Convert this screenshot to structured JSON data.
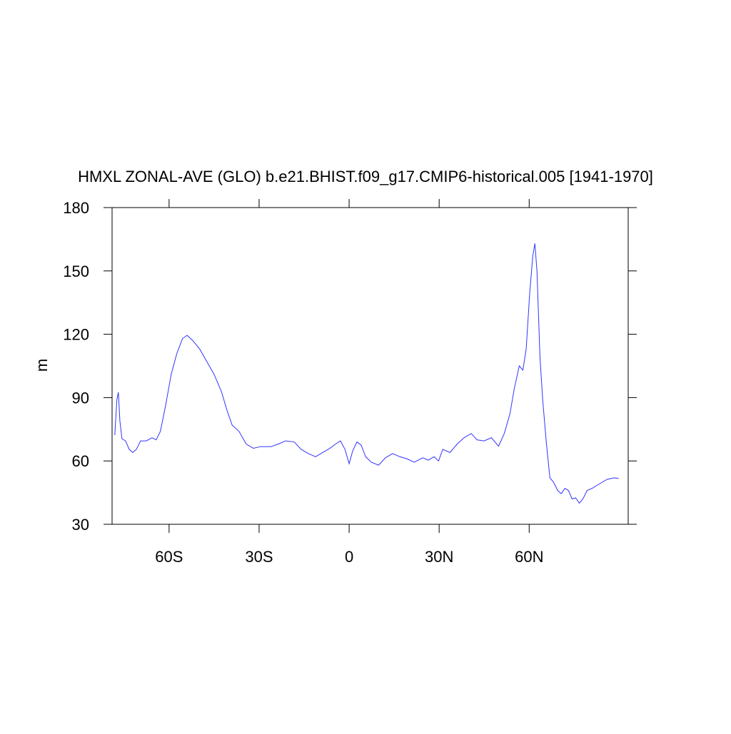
{
  "chart_data": {
    "type": "line",
    "title": "HMXL ZONAL-AVE (GLO) b.e21.BHIST.f09_g17.CMIP6-historical.005 [1941-1970]",
    "y_label": "m",
    "xlim": [
      -79,
      93
    ],
    "ylim": [
      30,
      180
    ],
    "xticks": [
      {
        "value": -60,
        "label": "60S"
      },
      {
        "value": -30,
        "label": "30S"
      },
      0,
      {
        "value": 30,
        "label": "30N"
      },
      {
        "value": 60,
        "label": "60N"
      }
    ],
    "yticks": [
      30,
      60,
      90,
      120,
      150,
      180
    ],
    "series": [
      {
        "color": "#3333ff",
        "x": [
          -78.1,
          -77.4,
          -76.9,
          -76.4,
          -75.7,
          -74.5,
          -73.3,
          -72.1,
          -70.9,
          -69.5,
          -67.6,
          -65.7,
          -64.3,
          -62.9,
          -61.2,
          -59.3,
          -57.4,
          -55.5,
          -54.0,
          -52.1,
          -49.8,
          -47.4,
          -45.0,
          -42.6,
          -40.7,
          -39.0,
          -36.7,
          -34.3,
          -31.9,
          -29.5,
          -26.0,
          -23.6,
          -21.2,
          -18.3,
          -16.0,
          -13.6,
          -11.2,
          -8.8,
          -6.4,
          -4.5,
          -2.9,
          -1.4,
          0,
          1.2,
          2.6,
          4.0,
          5.5,
          7.4,
          9.8,
          12.1,
          14.5,
          16.9,
          19.3,
          21.7,
          24.5,
          26.4,
          28.3,
          29.8,
          31.2,
          33.6,
          36.0,
          38.3,
          40.7,
          42.6,
          45.0,
          47.4,
          49.8,
          51.7,
          53.6,
          55.0,
          56.7,
          57.9,
          59.0,
          60.2,
          61.2,
          61.9,
          62.6,
          63.6,
          64.5,
          65.7,
          66.9,
          68.1,
          69.5,
          70.7,
          71.9,
          73.1,
          74.3,
          75.5,
          76.7,
          77.9,
          79.3,
          81.2,
          83.6,
          86.0,
          88.3,
          89.8
        ],
        "values": [
          72.2,
          89,
          92.5,
          79,
          70.5,
          69.5,
          65.5,
          64,
          65.5,
          69.5,
          69.5,
          71,
          70,
          74,
          86,
          101,
          111,
          118,
          119.5,
          117,
          113,
          107,
          101,
          93,
          84,
          77,
          74,
          68,
          66,
          66.8,
          66.8,
          68,
          69.5,
          69,
          65.5,
          63.5,
          62,
          64,
          66,
          68,
          69.5,
          65.5,
          58.7,
          64.8,
          69,
          67.5,
          62,
          59.4,
          58,
          61.5,
          63.5,
          62,
          61,
          59.4,
          61.5,
          60.4,
          62,
          60,
          65.5,
          64,
          68,
          71,
          73,
          70,
          69.5,
          71,
          67,
          73,
          82.4,
          94,
          105,
          103,
          113,
          140,
          157,
          163,
          150,
          109,
          89,
          69,
          52,
          50,
          46,
          44.5,
          47,
          46,
          42,
          42.5,
          40,
          42,
          46,
          47.2,
          49.3,
          51.3,
          52,
          51.7
        ]
      }
    ]
  }
}
